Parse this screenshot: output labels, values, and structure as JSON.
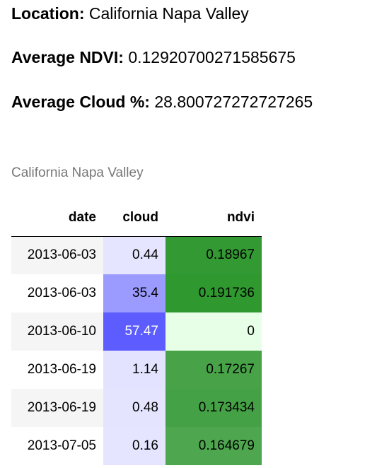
{
  "summary": {
    "location_label": "Location:",
    "location_value": "California Napa Valley",
    "ndvi_label": "Average NDVI:",
    "ndvi_value": "0.12920700271585675",
    "cloud_label": "Average Cloud %:",
    "cloud_value": "28.800727272727265"
  },
  "table": {
    "caption": "California Napa Valley",
    "headers": {
      "date": "date",
      "cloud": "cloud",
      "ndvi": "ndvi"
    },
    "rows": [
      {
        "date": "2013-06-03",
        "cloud": "0.44",
        "ndvi": "0.18967",
        "cloud_bg": "#e5e5ff",
        "ndvi_bg": "#339933",
        "ndvi_fg": "#000000",
        "cloud_fg": "#000000"
      },
      {
        "date": "2013-06-03",
        "cloud": "35.4",
        "ndvi": "0.191736",
        "cloud_bg": "#9a9aff",
        "ndvi_bg": "#2f982f",
        "ndvi_fg": "#000000",
        "cloud_fg": "#000000"
      },
      {
        "date": "2013-06-10",
        "cloud": "57.47",
        "ndvi": "0",
        "cloud_bg": "#5d5dff",
        "ndvi_bg": "#e6ffe6",
        "ndvi_fg": "#000000",
        "cloud_fg": "#ffffff"
      },
      {
        "date": "2013-06-19",
        "cloud": "1.14",
        "ndvi": "0.17267",
        "cloud_bg": "#e3e3ff",
        "ndvi_bg": "#48a348",
        "ndvi_fg": "#000000",
        "cloud_fg": "#000000"
      },
      {
        "date": "2013-06-19",
        "cloud": "0.48",
        "ndvi": "0.173434",
        "cloud_bg": "#e4e4ff",
        "ndvi_bg": "#45a145",
        "ndvi_fg": "#000000",
        "cloud_fg": "#000000"
      },
      {
        "date": "2013-07-05",
        "cloud": "0.16",
        "ndvi": "0.164679",
        "cloud_bg": "#e5e5ff",
        "ndvi_bg": "#4ea64e",
        "ndvi_fg": "#000000",
        "cloud_fg": "#000000"
      }
    ]
  }
}
